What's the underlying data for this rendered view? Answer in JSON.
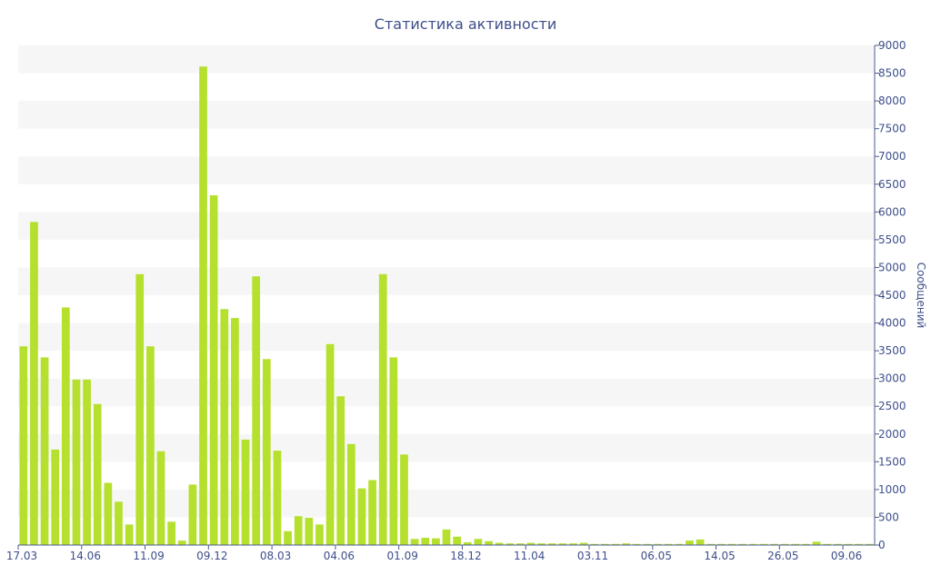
{
  "chart_data": {
    "type": "bar",
    "title": "Статистика активности",
    "xlabel": "",
    "ylabel": "Сообщений",
    "ylim": [
      0,
      9000
    ],
    "y_ticks": [
      0,
      500,
      1000,
      1500,
      2000,
      2500,
      3000,
      3500,
      4000,
      4500,
      5000,
      5500,
      6000,
      6500,
      7000,
      7500,
      8000,
      8500,
      9000
    ],
    "grid": "alternating-bands",
    "y_axis_side": "right",
    "bar_color": "#b5e02e",
    "x_tick_labels": [
      {
        "label": "17.03",
        "index": 0
      },
      {
        "label": "14.06",
        "index": 6
      },
      {
        "label": "11.09",
        "index": 12
      },
      {
        "label": "09.12",
        "index": 18
      },
      {
        "label": "08.03",
        "index": 24
      },
      {
        "label": "04.06",
        "index": 30
      },
      {
        "label": "01.09",
        "index": 36
      },
      {
        "label": "18.12",
        "index": 42
      },
      {
        "label": "11.04",
        "index": 48
      },
      {
        "label": "03.11",
        "index": 54
      },
      {
        "label": "06.05",
        "index": 60
      },
      {
        "label": "14.05",
        "index": 66
      },
      {
        "label": "26.05",
        "index": 72
      },
      {
        "label": "09.06",
        "index": 78
      }
    ],
    "values": [
      3580,
      5820,
      3380,
      1720,
      4280,
      2980,
      2980,
      2540,
      1120,
      780,
      370,
      4880,
      3580,
      1690,
      420,
      80,
      1090,
      8620,
      6300,
      4250,
      4090,
      1900,
      4840,
      3350,
      1700,
      250,
      520,
      490,
      370,
      3620,
      2680,
      1820,
      1020,
      1170,
      4880,
      3380,
      1630,
      110,
      130,
      120,
      280,
      150,
      50,
      110,
      70,
      40,
      30,
      30,
      40,
      30,
      30,
      30,
      30,
      40,
      20,
      20,
      20,
      30,
      20,
      20,
      20,
      20,
      20,
      80,
      100,
      20,
      20,
      20,
      20,
      20,
      20,
      20,
      20,
      20,
      20,
      60,
      20,
      20,
      20,
      20,
      20
    ]
  }
}
